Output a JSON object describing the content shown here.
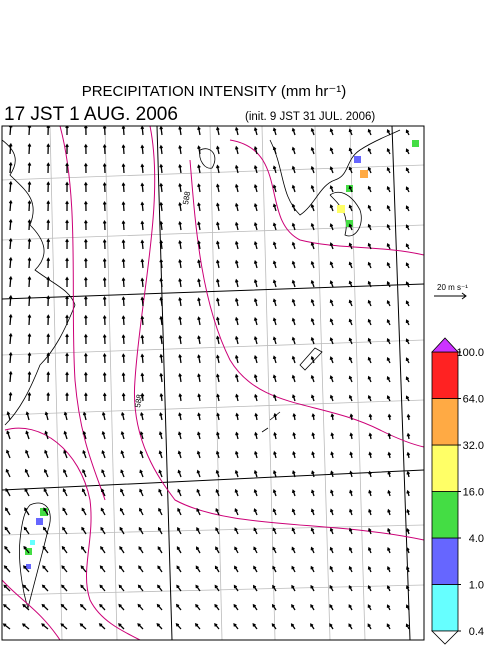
{
  "header": {
    "title": "PRECIPITATION INTENSITY (mm hr⁻¹)",
    "valid_time": "17 JST 1 AUG. 2006",
    "init_time": "(init. 9 JST 31 JUL. 2006)"
  },
  "vector_scale": "20 m s⁻¹",
  "contour_labels": [
    "588",
    "588"
  ],
  "colorbar": {
    "levels": [
      {
        "value": 0.4,
        "label": "0.4"
      },
      {
        "value": 1,
        "label": "1.0"
      },
      {
        "value": 4,
        "label": "4.0"
      },
      {
        "value": 16,
        "label": "16.0"
      },
      {
        "value": 32,
        "label": "32.0"
      },
      {
        "value": 64,
        "label": "64.0"
      },
      {
        "value": 100,
        "label": "100.0"
      }
    ],
    "colors": [
      "#66ffff",
      "#6666ff",
      "#44dd44",
      "#ffff66",
      "#ffaa44",
      "#ff2222"
    ],
    "over_color": "#cc33ff",
    "under_color": "#ffffff"
  }
}
